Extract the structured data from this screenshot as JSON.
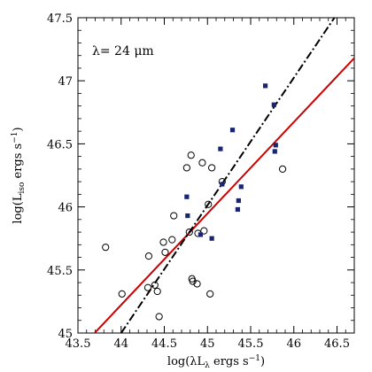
{
  "chart_data": {
    "type": "scatter",
    "title": "",
    "annotation": "λ= 24 μm",
    "xlabel": "log(λL_λ ergs s⁻¹)",
    "ylabel": "log(L_iso ergs s⁻¹)",
    "xlim": [
      43.5,
      46.7
    ],
    "ylim": [
      45.0,
      47.5
    ],
    "x_ticks": [
      43.5,
      44,
      44.5,
      45,
      45.5,
      46,
      46.5
    ],
    "y_ticks": [
      45,
      45.5,
      46,
      46.5,
      47,
      47.5
    ],
    "grid": false,
    "legend": "none",
    "series": [
      {
        "marker": "open-circle",
        "color": "#000000",
        "points": [
          [
            43.82,
            45.68
          ],
          [
            44.01,
            45.31
          ],
          [
            44.31,
            45.36
          ],
          [
            44.32,
            45.61
          ],
          [
            44.39,
            45.38
          ],
          [
            44.42,
            45.33
          ],
          [
            44.44,
            45.13
          ],
          [
            44.49,
            45.72
          ],
          [
            44.51,
            45.64
          ],
          [
            44.59,
            45.74
          ],
          [
            44.61,
            45.93
          ],
          [
            44.76,
            46.31
          ],
          [
            44.79,
            45.8
          ],
          [
            44.81,
            46.41
          ],
          [
            44.82,
            45.43
          ],
          [
            44.83,
            45.41
          ],
          [
            44.88,
            45.39
          ],
          [
            44.89,
            45.79
          ],
          [
            44.94,
            46.35
          ],
          [
            44.96,
            45.81
          ],
          [
            45.01,
            46.02
          ],
          [
            45.03,
            45.31
          ],
          [
            45.05,
            46.31
          ],
          [
            45.17,
            46.2
          ],
          [
            45.87,
            46.3
          ]
        ]
      },
      {
        "marker": "filled-square",
        "color": "#1a2470",
        "points": [
          [
            44.76,
            46.08
          ],
          [
            44.77,
            45.93
          ],
          [
            44.92,
            45.78
          ],
          [
            45.05,
            45.75
          ],
          [
            45.15,
            46.46
          ],
          [
            45.17,
            46.18
          ],
          [
            45.29,
            46.61
          ],
          [
            45.35,
            45.98
          ],
          [
            45.36,
            46.05
          ],
          [
            45.39,
            46.16
          ],
          [
            45.67,
            46.96
          ],
          [
            45.77,
            46.81
          ],
          [
            45.78,
            46.44
          ],
          [
            45.79,
            46.49
          ]
        ]
      }
    ],
    "lines": [
      {
        "style": "solid",
        "color": "#cc0000",
        "points": [
          [
            43.5,
            44.86
          ],
          [
            46.7,
            47.18
          ]
        ]
      },
      {
        "style": "dash-dot",
        "color": "#000000",
        "points": [
          [
            44.0,
            45.0
          ],
          [
            46.5,
            47.53
          ]
        ]
      }
    ]
  }
}
